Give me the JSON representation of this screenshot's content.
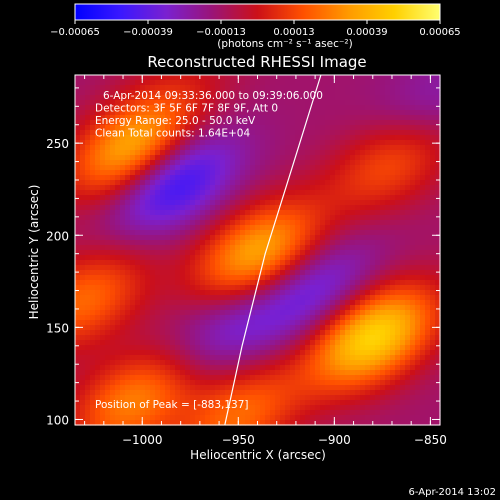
{
  "chart_data": {
    "type": "heatmap",
    "title": "Reconstructed RHESSI Image",
    "xlabel": "Heliocentric X (arcsec)",
    "ylabel": "Heliocentric Y (arcsec)",
    "xlim": [
      -1035,
      -845
    ],
    "ylim": [
      97,
      287
    ],
    "x_ticks": [
      -1000,
      -950,
      -900,
      -850
    ],
    "y_ticks": [
      100,
      150,
      200,
      250
    ],
    "x_tick_labels": [
      "−1000",
      "−950",
      "−900",
      "−850"
    ],
    "y_tick_labels": [
      "100",
      "150",
      "200",
      "250"
    ],
    "colorbar": {
      "range": [
        -0.00065,
        0.00065
      ],
      "ticks": [
        -0.00065,
        -0.00039,
        -0.00013,
        0.00013,
        0.00039,
        0.00065
      ],
      "tick_labels": [
        "−0.00065",
        "−0.00039",
        "−0.00013",
        "0.00013",
        "0.00039",
        "0.00065"
      ],
      "units_label": "(photons cm⁻² s⁻¹ asec⁻²)",
      "colormap": [
        "#0000ff",
        "#3a18ff",
        "#7a20d0",
        "#9a1478",
        "#cc1018",
        "#ff5000",
        "#ff9a00",
        "#ffd000",
        "#ffff70"
      ]
    },
    "annotations": [
      "6-Apr-2014 09:33:36.000 to 09:39:06.000",
      "Detectors: 3F 5F 6F 7F 8F 9F, Att 0",
      "Energy Range: 25.0 - 50.0 keV",
      "Clean     Total counts: 1.64E+04"
    ],
    "peak_label": "Position of Peak = [-883,137]",
    "peak_position": [
      -883,
      137
    ],
    "timestamp": "6-Apr-2014 13:02",
    "limb_curve": [
      [
        -957,
        97
      ],
      [
        -948,
        140
      ],
      [
        -936,
        190
      ],
      [
        -921,
        240
      ],
      [
        -907,
        287
      ]
    ],
    "sources": [
      {
        "x": -1005,
        "y": 246,
        "amplitude": 0.00055
      },
      {
        "x": -940,
        "y": 190,
        "amplitude": 0.00052
      },
      {
        "x": -880,
        "y": 145,
        "amplitude": 0.00065
      },
      {
        "x": -1030,
        "y": 165,
        "amplitude": 0.00035
      },
      {
        "x": -870,
        "y": 240,
        "amplitude": 0.0003
      },
      {
        "x": -1005,
        "y": 110,
        "amplitude": 0.0004
      },
      {
        "x": -950,
        "y": 102,
        "amplitude": 0.00035
      },
      {
        "x": -980,
        "y": 280,
        "amplitude": 0.0001
      },
      {
        "x": -985,
        "y": 230,
        "amplitude": -0.00042
      },
      {
        "x": -910,
        "y": 170,
        "amplitude": -0.00025
      },
      {
        "x": -955,
        "y": 150,
        "amplitude": -0.0002
      },
      {
        "x": -850,
        "y": 270,
        "amplitude": -0.00015
      }
    ],
    "background": -0.00014
  }
}
